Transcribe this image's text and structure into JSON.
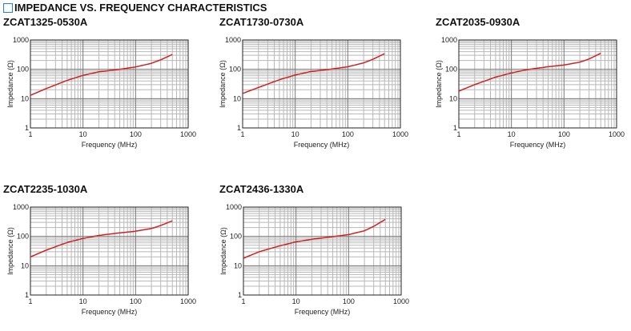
{
  "header": {
    "title": "IMPEDANCE VS. FREQUENCY CHARACTERISTICS"
  },
  "colors": {
    "curve": "#d42020",
    "grid": "#b8b8b8",
    "title_icon": "#2a7fd4"
  },
  "chart_data": [
    {
      "type": "line",
      "title": "ZCAT1325-0530A",
      "xlabel": "Frequency (MHz)",
      "ylabel": "Impedance (Ω)",
      "xscale": "log",
      "yscale": "log",
      "xlim": [
        1,
        1000
      ],
      "ylim": [
        1,
        1000
      ],
      "xticks": [
        "1",
        "10",
        "100",
        "1000"
      ],
      "yticks": [
        "1",
        "10",
        "100",
        "1000"
      ],
      "grid": true,
      "x": [
        1,
        2,
        5,
        10,
        20,
        50,
        100,
        200,
        300,
        500
      ],
      "y": [
        13,
        22,
        42,
        62,
        82,
        100,
        120,
        160,
        210,
        320
      ]
    },
    {
      "type": "line",
      "title": "ZCAT1730-0730A",
      "xlabel": "Frequency (MHz)",
      "ylabel": "Impedance (Ω)",
      "xscale": "log",
      "yscale": "log",
      "xlim": [
        1,
        1000
      ],
      "ylim": [
        1,
        1000
      ],
      "xticks": [
        "1",
        "10",
        "100",
        "1000"
      ],
      "yticks": [
        "1",
        "10",
        "100",
        "1000"
      ],
      "grid": true,
      "x": [
        1,
        2,
        5,
        10,
        20,
        50,
        100,
        200,
        300,
        500
      ],
      "y": [
        15,
        24,
        44,
        64,
        84,
        102,
        122,
        165,
        220,
        340
      ]
    },
    {
      "type": "line",
      "title": "ZCAT2035-0930A",
      "xlabel": "Frequency (MHz)",
      "ylabel": "Impedance (Ω)",
      "xscale": "log",
      "yscale": "log",
      "xlim": [
        1,
        1000
      ],
      "ylim": [
        1,
        1000
      ],
      "xticks": [
        "1",
        "10",
        "100",
        "1000"
      ],
      "yticks": [
        "1",
        "10",
        "100",
        "1000"
      ],
      "grid": true,
      "x": [
        1,
        2,
        5,
        10,
        20,
        50,
        100,
        200,
        300,
        500
      ],
      "y": [
        18,
        30,
        54,
        75,
        98,
        122,
        140,
        175,
        225,
        350
      ]
    },
    {
      "type": "line",
      "title": "ZCAT2235-1030A",
      "xlabel": "Frequency (MHz)",
      "ylabel": "Impedance (Ω)",
      "xscale": "log",
      "yscale": "log",
      "xlim": [
        1,
        1000
      ],
      "ylim": [
        1,
        1000
      ],
      "xticks": [
        "1",
        "10",
        "100",
        "1000"
      ],
      "yticks": [
        "1",
        "10",
        "100",
        "1000"
      ],
      "grid": true,
      "x": [
        1,
        2,
        5,
        10,
        20,
        50,
        100,
        200,
        300,
        500
      ],
      "y": [
        20,
        34,
        62,
        85,
        108,
        132,
        150,
        185,
        235,
        340
      ]
    },
    {
      "type": "line",
      "title": "ZCAT2436-1330A",
      "xlabel": "Frequency (MHz)",
      "ylabel": "Impedance (Ω)",
      "xscale": "log",
      "yscale": "log",
      "xlim": [
        1,
        1000
      ],
      "ylim": [
        1,
        1000
      ],
      "xticks": [
        "1",
        "10",
        "100",
        "1000"
      ],
      "yticks": [
        "1",
        "10",
        "100",
        "1000"
      ],
      "grid": true,
      "x": [
        1,
        2,
        5,
        10,
        20,
        50,
        100,
        200,
        300,
        500
      ],
      "y": [
        18,
        30,
        48,
        65,
        80,
        98,
        115,
        155,
        220,
        380
      ]
    }
  ]
}
